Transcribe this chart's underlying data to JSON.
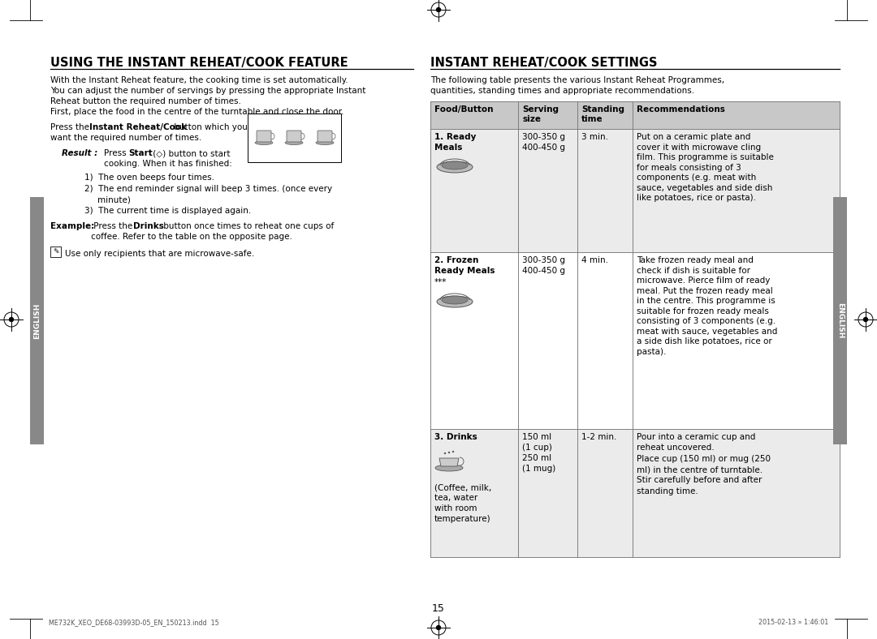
{
  "bg_color": "#ffffff",
  "page_number": "15",
  "footer_left": "ME732K_XEO_DE68-03993D-05_EN_150213.indd  15",
  "footer_right": "2015-02-13 » 1:46:01",
  "left_section": {
    "title": "USING THE INSTANT REHEAT/COOK FEATURE",
    "intro_lines": [
      "With the Instant Reheat feature, the cooking time is set automatically.",
      "You can adjust the number of servings by pressing the appropriate Instant",
      "Reheat button the required number of times.",
      "First, place the food in the centre of the turntable and close the door."
    ],
    "numbered_items": [
      "The oven beeps four times.",
      "The end reminder signal will beep 3 times. (once every",
      "The current time is displayed again."
    ],
    "note_text": "Use only recipients that are microwave-safe."
  },
  "right_section": {
    "title": "INSTANT REHEAT/COOK SETTINGS",
    "intro_lines": [
      "The following table presents the various Instant Reheat Programmes,",
      "quantities, standing times and appropriate recommendations."
    ],
    "table_header": [
      "Food/Button",
      "Serving\nsize",
      "Standing\ntime",
      "Recommendations"
    ],
    "header_bg": "#c8c8c8",
    "row1_bg": "#ebebeb",
    "row2_bg": "#ffffff",
    "row3_bg": "#ebebeb"
  },
  "sidebar_color": "#888888",
  "sidebar_text": "ENGLISH"
}
